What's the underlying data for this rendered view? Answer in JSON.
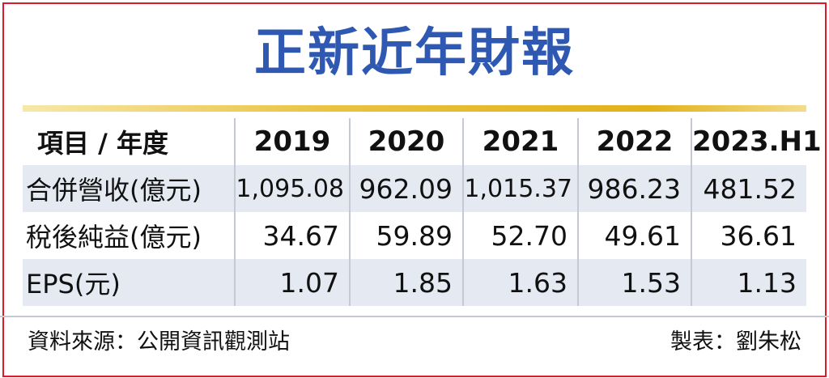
{
  "title": "正新近年財報",
  "table": {
    "header": [
      "項目 / 年度",
      "2019",
      "2020",
      "2021",
      "2022",
      "2023.H1"
    ],
    "rows": [
      {
        "label": "合併營收(億元)",
        "values": [
          "1,095.08",
          "962.09",
          "1,015.37",
          "986.23",
          "481.52"
        ]
      },
      {
        "label": "稅後純益(億元)",
        "values": [
          "34.67",
          "59.89",
          "52.70",
          "49.61",
          "36.61"
        ]
      },
      {
        "label": "EPS(元)",
        "values": [
          "1.07",
          "1.85",
          "1.63",
          "1.53",
          "1.13"
        ]
      }
    ]
  },
  "footer": {
    "source": "資料來源：公開資訊觀測站",
    "maker": "製表：劉朱松"
  },
  "colors": {
    "title": "#2e58b2",
    "frame": "#e0192a",
    "rule": "#e2b21a",
    "row_shade": "#e5e9f1"
  }
}
